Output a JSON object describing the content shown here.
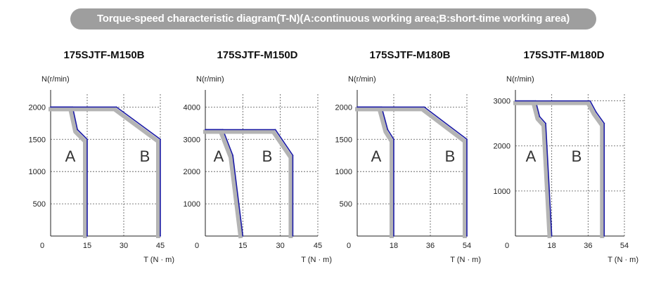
{
  "header": {
    "title": "Torque-speed characteristic diagram(T-N)(A:continuous working area;B:short-time working area)"
  },
  "colors": {
    "banner_bg": "#9e9e9e",
    "curve": "#1a1aa6",
    "band": "#b4b4b4",
    "grid": "#555555"
  },
  "chart_data": [
    {
      "type": "line",
      "title": "175SJTF-M150B",
      "ylabel": "N(r/min)",
      "xlabel": "T (N · m)",
      "xlim": [
        0,
        45
      ],
      "ylim": [
        0,
        2200
      ],
      "x_ticks": [
        0,
        15,
        30,
        45
      ],
      "y_ticks": [
        500,
        1000,
        1500,
        2000
      ],
      "grid": true,
      "area_labels": [
        "A",
        "B"
      ],
      "series": [
        {
          "name": "A",
          "x": [
            0,
            9,
            11,
            15,
            15
          ],
          "y": [
            2000,
            2000,
            1650,
            1500,
            0
          ]
        },
        {
          "name": "B",
          "x": [
            0,
            27,
            45,
            45
          ],
          "y": [
            2000,
            2000,
            1500,
            0
          ]
        }
      ]
    },
    {
      "type": "line",
      "title": "175SJTF-M150D",
      "ylabel": "N(r/min)",
      "xlabel": "T (N · m)",
      "xlim": [
        0,
        45
      ],
      "ylim": [
        0,
        4400
      ],
      "x_ticks": [
        0,
        15,
        30,
        45
      ],
      "y_ticks": [
        1000,
        2000,
        3000,
        4000
      ],
      "grid": true,
      "area_labels": [
        "A",
        "B"
      ],
      "series": [
        {
          "name": "A",
          "x": [
            0,
            7,
            11,
            15
          ],
          "y": [
            3300,
            3300,
            2500,
            0
          ]
        },
        {
          "name": "B",
          "x": [
            0,
            28,
            35,
            35
          ],
          "y": [
            3300,
            3300,
            2500,
            0
          ]
        }
      ]
    },
    {
      "type": "line",
      "title": "175SJTF-M180B",
      "ylabel": "N(r/min)",
      "xlabel": "T (N · m)",
      "xlim": [
        0,
        54
      ],
      "ylim": [
        0,
        2200
      ],
      "x_ticks": [
        0,
        18,
        36,
        54
      ],
      "y_ticks": [
        500,
        1000,
        1500,
        2000
      ],
      "grid": true,
      "area_labels": [
        "A",
        "B"
      ],
      "series": [
        {
          "name": "A",
          "x": [
            0,
            12,
            15,
            18,
            18
          ],
          "y": [
            2000,
            2000,
            1650,
            1500,
            0
          ]
        },
        {
          "name": "B",
          "x": [
            0,
            33,
            54,
            54
          ],
          "y": [
            2000,
            2000,
            1500,
            0
          ]
        }
      ]
    },
    {
      "type": "line",
      "title": "175SJTF-M180D",
      "ylabel": "N(r/min)",
      "xlabel": "T (N · m)",
      "xlim": [
        0,
        54
      ],
      "ylim": [
        0,
        3150
      ],
      "x_ticks": [
        0,
        18,
        36,
        54
      ],
      "y_ticks": [
        1000,
        2000,
        3000
      ],
      "grid": true,
      "area_labels": [
        "A",
        "B"
      ],
      "series": [
        {
          "name": "A",
          "x": [
            0,
            10,
            12,
            15,
            18
          ],
          "y": [
            3000,
            3000,
            2650,
            2500,
            0
          ]
        },
        {
          "name": "B",
          "x": [
            0,
            37,
            40,
            44,
            44
          ],
          "y": [
            3000,
            3000,
            2750,
            2500,
            0
          ]
        }
      ]
    }
  ]
}
